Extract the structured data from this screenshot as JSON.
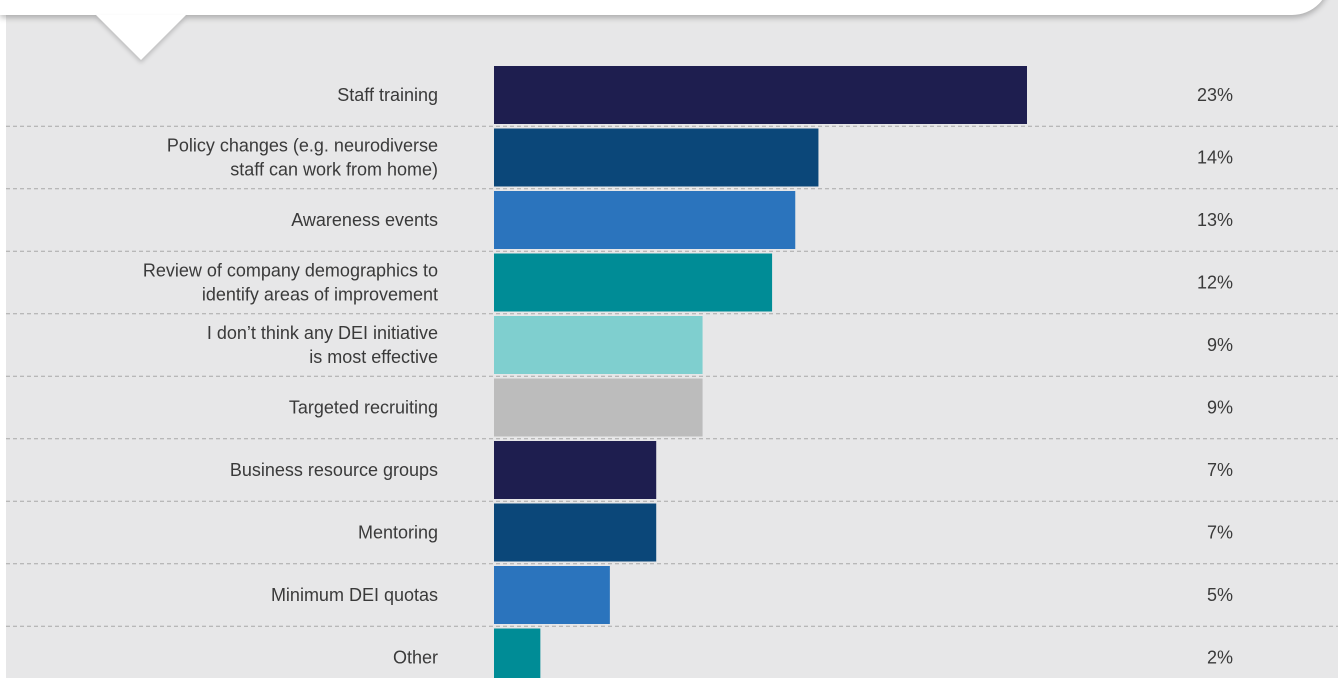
{
  "chart_data": {
    "type": "bar",
    "orientation": "horizontal",
    "categories": [
      [
        "Staff training"
      ],
      [
        "Policy changes (e.g. neurodiverse",
        "staff can work from home)"
      ],
      [
        "Awareness events"
      ],
      [
        "Review of company demographics to",
        "identify areas of improvement"
      ],
      [
        "I don’t think any DEI initiative",
        "is most effective"
      ],
      [
        "Targeted recruiting"
      ],
      [
        "Business resource groups"
      ],
      [
        "Mentoring"
      ],
      [
        "Minimum DEI quotas"
      ],
      [
        "Other"
      ]
    ],
    "values": [
      23,
      14,
      13,
      12,
      9,
      9,
      7,
      7,
      5,
      2
    ],
    "value_labels": [
      "23%",
      "14%",
      "13%",
      "12%",
      "9%",
      "9%",
      "7%",
      "7%",
      "5%",
      "2%"
    ],
    "unit": "%",
    "xlim": [
      0,
      23
    ],
    "grid": false,
    "bar_colors": [
      "#1e1e4f",
      "#0b4779",
      "#2b74bd",
      "#008c96",
      "#7fcfcf",
      "#bcbcbc",
      "#1e1e4f",
      "#0b4779",
      "#2b74bd",
      "#008c96"
    ]
  }
}
